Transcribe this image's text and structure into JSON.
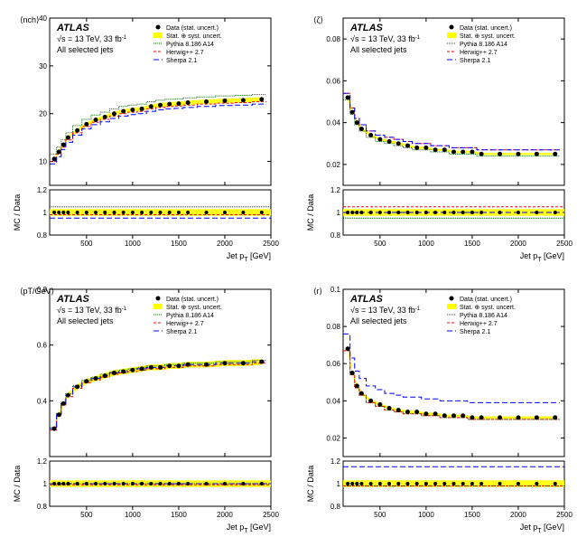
{
  "global": {
    "atlas_label": "ATLAS",
    "sqrt_s": "√s = 13 TeV, 33 fb",
    "sqrt_s_sup": "-1",
    "selection": "All selected jets",
    "xlabel": "Jet p",
    "xlabel_sub": "T",
    "xlabel_unit": " [GeV]",
    "ratio_ylabel": "MC / Data",
    "legend": {
      "data": "Data (stat. uncert.)",
      "syst": "Stat. ⊕ syst. uncert.",
      "pythia": "Pythia 8.186 A14",
      "herwig": "Herwig++ 2.7",
      "sherpa": "Sherpa 2.1"
    },
    "colors": {
      "data": "#000000",
      "syst_band": "#ffff00",
      "pythia": "#006400",
      "herwig": "#ff0000",
      "sherpa": "#0000ff",
      "axis": "#000000",
      "background": "#ffffff"
    },
    "xlim": [
      100,
      2500
    ],
    "xticks": [
      500,
      1000,
      1500,
      2000,
      2500
    ],
    "ratio_ylim": [
      0.8,
      1.2
    ],
    "ratio_yticks": [
      0.8,
      1,
      1.2
    ]
  },
  "panels": [
    {
      "id": "top-left",
      "ylabel": "⟨n",
      "ylabel_sub": "ch",
      "ylabel_close": "⟩",
      "ylim": [
        5,
        40
      ],
      "yticks": [
        10,
        20,
        30,
        40
      ],
      "data_points": [
        {
          "x": 150,
          "y": 10.5
        },
        {
          "x": 200,
          "y": 12
        },
        {
          "x": 250,
          "y": 13.5
        },
        {
          "x": 300,
          "y": 15
        },
        {
          "x": 400,
          "y": 16.5
        },
        {
          "x": 500,
          "y": 17.8
        },
        {
          "x": 600,
          "y": 18.7
        },
        {
          "x": 700,
          "y": 19.3
        },
        {
          "x": 800,
          "y": 20
        },
        {
          "x": 900,
          "y": 20.5
        },
        {
          "x": 1000,
          "y": 20.8
        },
        {
          "x": 1100,
          "y": 21
        },
        {
          "x": 1200,
          "y": 21.5
        },
        {
          "x": 1300,
          "y": 21.8
        },
        {
          "x": 1400,
          "y": 22
        },
        {
          "x": 1500,
          "y": 22.1
        },
        {
          "x": 1600,
          "y": 22.3
        },
        {
          "x": 1800,
          "y": 22.5
        },
        {
          "x": 2000,
          "y": 22.7
        },
        {
          "x": 2200,
          "y": 22.8
        },
        {
          "x": 2400,
          "y": 23
        }
      ],
      "pythia_offset": 1.0,
      "herwig_offset": -0.5,
      "sherpa_offset": -1.0,
      "ratio_pythia": 1.05,
      "ratio_herwig": 0.98,
      "ratio_sherpa": 0.95
    },
    {
      "id": "top-right",
      "ylabel": "⟨ζ⟩",
      "ylabel_sub": "",
      "ylabel_close": "",
      "ylim": [
        0.01,
        0.09
      ],
      "yticks": [
        0.02,
        0.04,
        0.06,
        0.08
      ],
      "data_points": [
        {
          "x": 150,
          "y": 0.052
        },
        {
          "x": 200,
          "y": 0.045
        },
        {
          "x": 250,
          "y": 0.04
        },
        {
          "x": 300,
          "y": 0.037
        },
        {
          "x": 400,
          "y": 0.034
        },
        {
          "x": 500,
          "y": 0.032
        },
        {
          "x": 600,
          "y": 0.031
        },
        {
          "x": 700,
          "y": 0.03
        },
        {
          "x": 800,
          "y": 0.029
        },
        {
          "x": 900,
          "y": 0.028
        },
        {
          "x": 1000,
          "y": 0.028
        },
        {
          "x": 1100,
          "y": 0.027
        },
        {
          "x": 1200,
          "y": 0.027
        },
        {
          "x": 1300,
          "y": 0.026
        },
        {
          "x": 1400,
          "y": 0.026
        },
        {
          "x": 1500,
          "y": 0.026
        },
        {
          "x": 1600,
          "y": 0.025
        },
        {
          "x": 1800,
          "y": 0.025
        },
        {
          "x": 2000,
          "y": 0.025
        },
        {
          "x": 2200,
          "y": 0.025
        },
        {
          "x": 2400,
          "y": 0.025
        }
      ],
      "pythia_offset": -0.001,
      "herwig_offset": 0.002,
      "sherpa_offset": 0.002,
      "ratio_pythia": 0.95,
      "ratio_herwig": 1.05,
      "ratio_sherpa": 1.0
    },
    {
      "id": "bottom-left",
      "ylabel": "⟨p",
      "ylabel_sub": "T",
      "ylabel_sup": "rel",
      "ylabel_close": "/GeV⟩",
      "ylim": [
        0.2,
        0.8
      ],
      "yticks": [
        0.4,
        0.6,
        0.8
      ],
      "data_points": [
        {
          "x": 150,
          "y": 0.3
        },
        {
          "x": 200,
          "y": 0.35
        },
        {
          "x": 250,
          "y": 0.39
        },
        {
          "x": 300,
          "y": 0.42
        },
        {
          "x": 400,
          "y": 0.45
        },
        {
          "x": 500,
          "y": 0.47
        },
        {
          "x": 600,
          "y": 0.48
        },
        {
          "x": 700,
          "y": 0.49
        },
        {
          "x": 800,
          "y": 0.5
        },
        {
          "x": 900,
          "y": 0.505
        },
        {
          "x": 1000,
          "y": 0.51
        },
        {
          "x": 1100,
          "y": 0.515
        },
        {
          "x": 1200,
          "y": 0.52
        },
        {
          "x": 1300,
          "y": 0.52
        },
        {
          "x": 1400,
          "y": 0.525
        },
        {
          "x": 1500,
          "y": 0.525
        },
        {
          "x": 1600,
          "y": 0.53
        },
        {
          "x": 1800,
          "y": 0.53
        },
        {
          "x": 2000,
          "y": 0.535
        },
        {
          "x": 2200,
          "y": 0.535
        },
        {
          "x": 2400,
          "y": 0.54
        }
      ],
      "pythia_offset": 0.005,
      "herwig_offset": -0.005,
      "sherpa_offset": 0.0,
      "ratio_pythia": 1.0,
      "ratio_herwig": 0.99,
      "ratio_sherpa": 1.0
    },
    {
      "id": "bottom-right",
      "ylabel": "⟨r⟩",
      "ylabel_sub": "",
      "ylabel_close": "",
      "ylim": [
        0.01,
        0.1
      ],
      "yticks": [
        0.02,
        0.04,
        0.06,
        0.08,
        0.1
      ],
      "data_points": [
        {
          "x": 150,
          "y": 0.068
        },
        {
          "x": 200,
          "y": 0.055
        },
        {
          "x": 250,
          "y": 0.048
        },
        {
          "x": 300,
          "y": 0.044
        },
        {
          "x": 400,
          "y": 0.04
        },
        {
          "x": 500,
          "y": 0.038
        },
        {
          "x": 600,
          "y": 0.036
        },
        {
          "x": 700,
          "y": 0.035
        },
        {
          "x": 800,
          "y": 0.034
        },
        {
          "x": 900,
          "y": 0.034
        },
        {
          "x": 1000,
          "y": 0.033
        },
        {
          "x": 1100,
          "y": 0.033
        },
        {
          "x": 1200,
          "y": 0.032
        },
        {
          "x": 1300,
          "y": 0.032
        },
        {
          "x": 1400,
          "y": 0.032
        },
        {
          "x": 1500,
          "y": 0.031
        },
        {
          "x": 1600,
          "y": 0.031
        },
        {
          "x": 1800,
          "y": 0.031
        },
        {
          "x": 2000,
          "y": 0.031
        },
        {
          "x": 2200,
          "y": 0.031
        },
        {
          "x": 2400,
          "y": 0.031
        }
      ],
      "pythia_offset": -0.001,
      "herwig_offset": -0.001,
      "sherpa_offset": 0.008,
      "ratio_pythia": 0.98,
      "ratio_herwig": 0.98,
      "ratio_sherpa": 1.15
    }
  ]
}
